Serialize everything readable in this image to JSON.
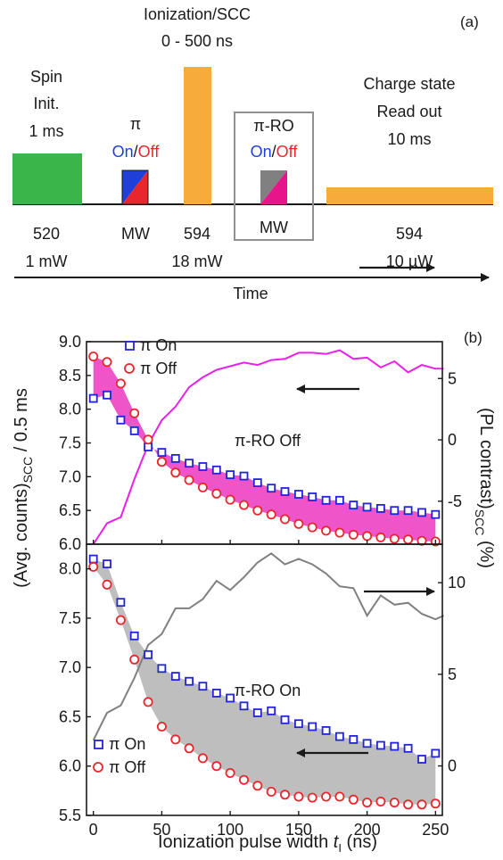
{
  "panel_a": {
    "label": "(a)",
    "pulses": [
      {
        "title": [
          "Spin",
          "Init.",
          "1 ms"
        ],
        "below": [
          "520",
          "1 mW"
        ],
        "color": "#3ab54a"
      },
      {
        "title": [
          "π"
        ],
        "on": "On",
        "off": "Off",
        "below": [
          "MW"
        ],
        "on_color": "#1f3fd8",
        "off_color": "#e8262b"
      },
      {
        "title": [
          "Ionization/SCC",
          "0 - 500 ns"
        ],
        "below": [
          "594",
          "18 mW"
        ],
        "color": "#f7ab3b"
      },
      {
        "title": [
          "π-RO"
        ],
        "on": "On",
        "off": "Off",
        "below": [
          "MW"
        ],
        "on_color": "#808080",
        "off_color": "#e8158a"
      },
      {
        "title": [
          "Charge state",
          "Read out",
          "10 ms"
        ],
        "below": [
          "594",
          "10 µW"
        ],
        "color": "#f7ab3b"
      }
    ],
    "time_label": "Time"
  },
  "panel_b": {
    "label": "(b)",
    "y_left_label": "(Avg. counts)",
    "y_left_sub": "SCC",
    "y_left_suffix": " / 0.5 ms",
    "y_right_label": "(PL contrast)",
    "y_right_sub": "SCC",
    "y_right_suffix": " (%)",
    "x_label": "Ionization pulse width ",
    "x_label_var": "t",
    "x_label_sub": "I",
    "x_label_unit": " (ns)"
  },
  "chart_data": [
    {
      "type": "scatter",
      "annotation": "π-RO Off",
      "x": [
        0,
        10,
        20,
        30,
        40,
        50,
        60,
        70,
        80,
        90,
        100,
        110,
        120,
        130,
        140,
        150,
        160,
        170,
        180,
        190,
        200,
        210,
        220,
        230,
        240,
        250
      ],
      "series": [
        {
          "name": "π On",
          "marker": "square",
          "color": "#2323d8",
          "values": [
            8.16,
            8.21,
            7.84,
            7.68,
            7.44,
            7.36,
            7.27,
            7.2,
            7.15,
            7.1,
            7.03,
            7.01,
            6.91,
            6.83,
            6.78,
            6.74,
            6.7,
            6.65,
            6.65,
            6.58,
            6.55,
            6.53,
            6.5,
            6.5,
            6.47,
            6.44
          ]
        },
        {
          "name": "π Off",
          "marker": "circle",
          "color": "#e8262b",
          "values": [
            8.78,
            8.7,
            8.38,
            7.94,
            7.55,
            7.22,
            7.06,
            6.95,
            6.84,
            6.75,
            6.66,
            6.58,
            6.5,
            6.44,
            6.37,
            6.3,
            6.25,
            6.2,
            6.17,
            6.14,
            6.12,
            6.1,
            6.08,
            6.07,
            6.05,
            6.04
          ]
        },
        {
          "name": "PL contrast",
          "axis": "right",
          "marker": "line",
          "color": "#e821e8",
          "x": [
            0,
            10,
            20,
            30,
            40,
            50,
            60,
            70,
            80,
            90,
            100,
            110,
            120,
            130,
            140,
            150,
            160,
            170,
            180,
            190,
            200,
            210,
            220,
            230,
            240,
            250,
            256
          ],
          "values": [
            -8.5,
            -6.8,
            -6.3,
            -3.2,
            -0.4,
            1.6,
            2.7,
            4.3,
            5.1,
            5.7,
            6.0,
            6.3,
            6.1,
            6.5,
            6.6,
            7.1,
            7.1,
            7.0,
            7.3,
            6.6,
            6.7,
            5.9,
            6.4,
            5.5,
            6.1,
            5.8,
            5.8
          ]
        }
      ],
      "fill_color": "#ee55c8",
      "ylim": [
        6.0,
        9.0
      ],
      "y_ticks": [
        "6.0",
        "6.5",
        "7.0",
        "7.5",
        "8.0",
        "8.5",
        "9.0"
      ],
      "y2lim": [
        -8.5,
        8.0
      ],
      "y2_ticks": [
        "-5",
        "0",
        "5"
      ],
      "xlim": [
        -5,
        255
      ],
      "x_ticks": [
        "0",
        "50",
        "100",
        "150",
        "200",
        "250"
      ]
    },
    {
      "type": "scatter",
      "annotation": "π-RO On",
      "x": [
        0,
        10,
        20,
        30,
        40,
        50,
        60,
        70,
        80,
        90,
        100,
        110,
        120,
        130,
        140,
        150,
        160,
        170,
        180,
        190,
        200,
        210,
        220,
        230,
        240,
        250
      ],
      "series": [
        {
          "name": "π On",
          "marker": "square",
          "color": "#2323d8",
          "values": [
            8.1,
            8.05,
            7.66,
            7.32,
            7.13,
            6.99,
            6.91,
            6.86,
            6.81,
            6.74,
            6.69,
            6.61,
            6.54,
            6.56,
            6.47,
            6.43,
            6.4,
            6.36,
            6.3,
            6.27,
            6.23,
            6.21,
            6.2,
            6.18,
            6.07,
            6.13
          ]
        },
        {
          "name": "π Off",
          "marker": "circle",
          "color": "#e8262b",
          "values": [
            8.02,
            7.84,
            7.48,
            7.08,
            6.65,
            6.4,
            6.27,
            6.18,
            6.08,
            6.0,
            5.93,
            5.86,
            5.8,
            5.74,
            5.71,
            5.69,
            5.68,
            5.69,
            5.69,
            5.66,
            5.63,
            5.64,
            5.63,
            5.61,
            5.61,
            5.62
          ]
        },
        {
          "name": "PL contrast",
          "axis": "right",
          "marker": "line",
          "color": "#808080",
          "x": [
            0,
            10,
            20,
            30,
            40,
            50,
            60,
            70,
            80,
            90,
            100,
            110,
            120,
            130,
            140,
            150,
            160,
            170,
            180,
            190,
            200,
            210,
            220,
            230,
            240,
            250,
            256
          ],
          "values": [
            1.4,
            2.9,
            3.3,
            4.8,
            6.6,
            7.2,
            8.6,
            8.6,
            9.1,
            10.1,
            9.6,
            10.3,
            11.1,
            11.6,
            11.0,
            11.3,
            11.0,
            10.5,
            9.8,
            9.7,
            8.2,
            9.3,
            8.8,
            8.9,
            8.3,
            8.0,
            8.2
          ]
        }
      ],
      "fill_color": "#bebebe",
      "ylim": [
        5.5,
        8.25
      ],
      "y_ticks": [
        "5.5",
        "6.0",
        "6.5",
        "7.0",
        "7.5",
        "8.0"
      ],
      "y2lim": [
        -2.7,
        12.1
      ],
      "y2_ticks": [
        "0",
        "5",
        "10"
      ],
      "xlim": [
        -5,
        255
      ],
      "x_ticks": [
        "0",
        "50",
        "100",
        "150",
        "200",
        "250"
      ]
    }
  ]
}
